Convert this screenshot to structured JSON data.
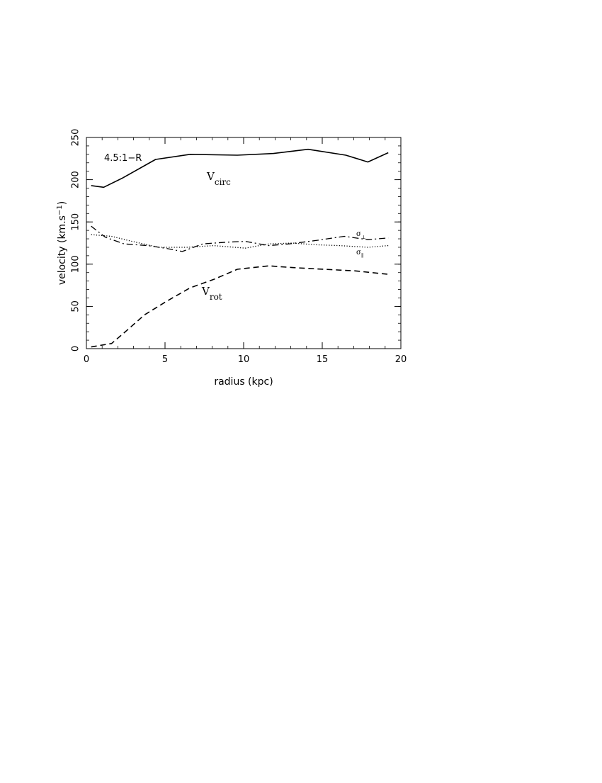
{
  "chart_data": {
    "type": "line",
    "panel_label": "4.5:1−R",
    "xlabel": "radius (kpc)",
    "ylabel": {
      "main": "velocity (km.s",
      "sup": "−1",
      "tail": ")"
    },
    "xlim": [
      0,
      20
    ],
    "ylim": [
      0,
      250
    ],
    "xticks": [
      0,
      5,
      10,
      15,
      20
    ],
    "yticks": [
      0,
      50,
      100,
      150,
      200,
      250
    ],
    "x_minor_step": 1,
    "y_minor_step": 10,
    "grid": false,
    "series": [
      {
        "name": "V_circ",
        "label": {
          "main": "V",
          "sub": "circ"
        },
        "style": "solid",
        "x": [
          0.3,
          1.1,
          2.3,
          4.4,
          6.6,
          9.6,
          11.9,
          14.1,
          16.5,
          17.9,
          19.2
        ],
        "y": [
          193,
          191,
          202,
          224,
          230,
          229,
          231,
          236,
          229,
          221,
          232
        ]
      },
      {
        "name": "sigma_perp",
        "label": {
          "main": "σ",
          "sub": "⊥"
        },
        "style": "dashdot",
        "x": [
          0.3,
          1.2,
          2.4,
          3.9,
          5.0,
          6.1,
          7.4,
          8.9,
          10.1,
          11.6,
          12.9,
          14.6,
          16.4,
          17.9,
          19.2
        ],
        "y": [
          145,
          132,
          124,
          122,
          119,
          115,
          124,
          126,
          127,
          122,
          124,
          128,
          133,
          129,
          131
        ]
      },
      {
        "name": "sigma_parallel",
        "label": {
          "main": "σ",
          "sub": "∥"
        },
        "style": "dotted",
        "x": [
          0.3,
          1.6,
          2.9,
          4.6,
          6.4,
          8.1,
          10.1,
          11.6,
          13.1,
          14.6,
          16.1,
          17.9,
          19.2
        ],
        "y": [
          135,
          133,
          127,
          120,
          120,
          122,
          119,
          124,
          125,
          123,
          122,
          120,
          122
        ]
      },
      {
        "name": "V_rot",
        "label": {
          "main": "V",
          "sub": "rot"
        },
        "style": "dashed",
        "x": [
          0.3,
          1.6,
          2.6,
          3.7,
          5.1,
          6.6,
          8.1,
          9.6,
          11.6,
          13.1,
          15.1,
          17.1,
          19.2
        ],
        "y": [
          2,
          6,
          22,
          40,
          56,
          72,
          82,
          94,
          98,
          96,
          94,
          92,
          88
        ]
      }
    ]
  }
}
